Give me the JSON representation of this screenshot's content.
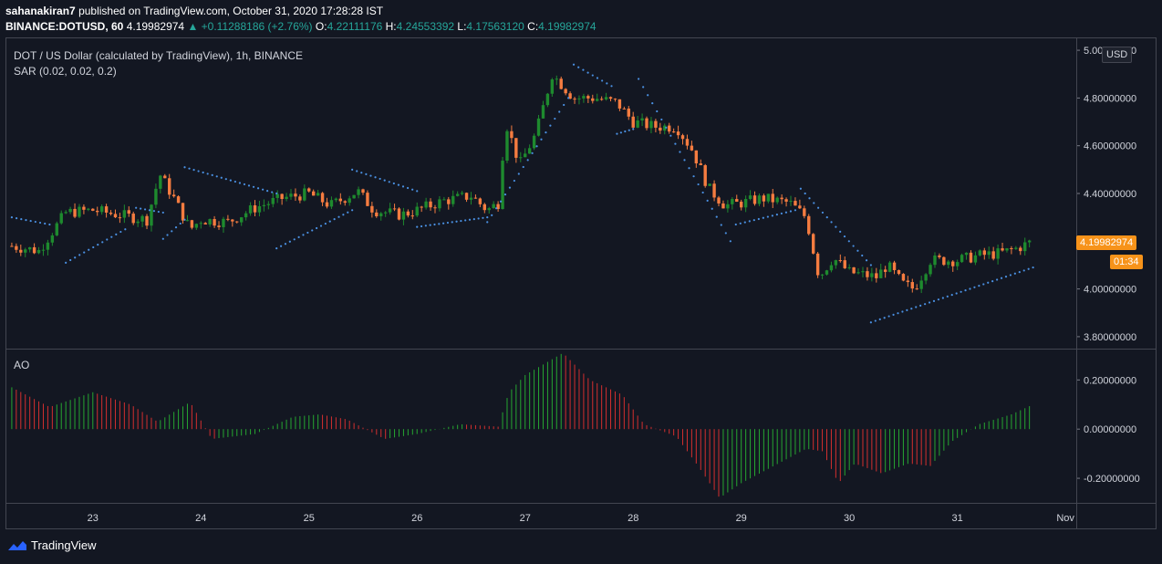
{
  "header": {
    "user": "sahanakiran7",
    "published": "published on TradingView.com, October 31, 2020 17:28:28 IST",
    "symbol_line": "BINANCE:DOTUSD, 60",
    "last": "4.19982974",
    "change": "▲ +0.11288186 (+2.76%)",
    "o_label": "O:",
    "o": "4.22111176",
    "h_label": "H:",
    "h": "4.24553392",
    "l_label": "L:",
    "l": "4.17563120",
    "c_label": "C:",
    "c": "4.19982974"
  },
  "main_legend": {
    "title": "DOT / US Dollar (calculated by TradingView), 1h, BINANCE",
    "indicator": "SAR (0.02, 0.02, 0.2)"
  },
  "ao_legend": "AO",
  "currency_button": "USD",
  "last_price_label": "4.19982974",
  "countdown_label": "01:34",
  "footer_brand": "TradingView",
  "colors": {
    "background": "#131722",
    "up": "#26a69a",
    "down": "#ef5350",
    "candle_up": "#1e8a2e",
    "candle_down": "#f57c40",
    "sar": "#4a90e2",
    "price_badge": "#f7931a"
  },
  "chart_data": [
    {
      "type": "candlestick",
      "title": "DOT / US Dollar (calculated by TradingView), 1h, BINANCE",
      "indicator": "SAR (0.02, 0.02, 0.2)",
      "ylim": [
        3.75,
        5.05
      ],
      "y_ticks": [
        "3.80000000",
        "4.00000000",
        "4.20000000",
        "4.40000000",
        "4.60000000",
        "4.80000000",
        "5.00000000"
      ],
      "x_ticks": [
        "23",
        "24",
        "25",
        "26",
        "27",
        "28",
        "29",
        "30",
        "31",
        "Nov"
      ],
      "close_path": [
        [
          22.25,
          4.18
        ],
        [
          22.5,
          4.16
        ],
        [
          22.75,
          4.32
        ],
        [
          23.0,
          4.33
        ],
        [
          23.25,
          4.31
        ],
        [
          23.5,
          4.29
        ],
        [
          23.62,
          4.48
        ],
        [
          23.75,
          4.38
        ],
        [
          23.9,
          4.25
        ],
        [
          24.0,
          4.29
        ],
        [
          24.25,
          4.28
        ],
        [
          24.5,
          4.34
        ],
        [
          24.75,
          4.38
        ],
        [
          25.0,
          4.4
        ],
        [
          25.2,
          4.35
        ],
        [
          25.45,
          4.41
        ],
        [
          25.6,
          4.33
        ],
        [
          25.85,
          4.31
        ],
        [
          26.0,
          4.33
        ],
        [
          26.25,
          4.37
        ],
        [
          26.5,
          4.39
        ],
        [
          26.65,
          4.33
        ],
        [
          26.75,
          4.36
        ],
        [
          26.82,
          4.7
        ],
        [
          26.95,
          4.52
        ],
        [
          27.1,
          4.65
        ],
        [
          27.25,
          4.9
        ],
        [
          27.45,
          4.8
        ],
        [
          27.65,
          4.8
        ],
        [
          27.85,
          4.78
        ],
        [
          28.0,
          4.7
        ],
        [
          28.2,
          4.68
        ],
        [
          28.4,
          4.68
        ],
        [
          28.55,
          4.58
        ],
        [
          28.7,
          4.42
        ],
        [
          28.85,
          4.35
        ],
        [
          29.0,
          4.36
        ],
        [
          29.2,
          4.38
        ],
        [
          29.45,
          4.36
        ],
        [
          29.6,
          4.3
        ],
        [
          29.72,
          4.05
        ],
        [
          29.85,
          4.13
        ],
        [
          30.0,
          4.07
        ],
        [
          30.25,
          4.05
        ],
        [
          30.35,
          4.1
        ],
        [
          30.5,
          4.02
        ],
        [
          30.6,
          4.0
        ],
        [
          30.75,
          4.12
        ],
        [
          31.0,
          4.12
        ],
        [
          31.2,
          4.14
        ],
        [
          31.4,
          4.15
        ],
        [
          31.55,
          4.17
        ],
        [
          31.7,
          4.2
        ]
      ],
      "sar_segments": [
        {
          "x": [
            22.25,
            22.6
          ],
          "y": [
            4.3,
            4.27
          ]
        },
        {
          "x": [
            22.75,
            23.3
          ],
          "y": [
            4.11,
            4.25
          ]
        },
        {
          "x": [
            23.4,
            23.65
          ],
          "y": [
            4.34,
            4.32
          ]
        },
        {
          "x": [
            23.65,
            23.85
          ],
          "y": [
            4.21,
            4.29
          ]
        },
        {
          "x": [
            23.85,
            24.7
          ],
          "y": [
            4.51,
            4.4
          ]
        },
        {
          "x": [
            24.7,
            25.4
          ],
          "y": [
            4.17,
            4.33
          ]
        },
        {
          "x": [
            25.4,
            26.0
          ],
          "y": [
            4.5,
            4.41
          ]
        },
        {
          "x": [
            26.0,
            26.65
          ],
          "y": [
            4.26,
            4.3
          ]
        },
        {
          "x": [
            26.65,
            27.4
          ],
          "y": [
            4.28,
            4.8
          ]
        },
        {
          "x": [
            27.45,
            27.8
          ],
          "y": [
            4.94,
            4.85
          ]
        },
        {
          "x": [
            27.85,
            28.0
          ],
          "y": [
            4.65,
            4.67
          ]
        },
        {
          "x": [
            28.05,
            28.9
          ],
          "y": [
            4.88,
            4.2
          ]
        },
        {
          "x": [
            28.95,
            29.5
          ],
          "y": [
            4.27,
            4.33
          ]
        },
        {
          "x": [
            29.55,
            30.2
          ],
          "y": [
            4.42,
            4.1
          ]
        },
        {
          "x": [
            30.2,
            31.7
          ],
          "y": [
            3.86,
            4.09
          ]
        }
      ]
    },
    {
      "type": "bar",
      "title": "AO",
      "ylim": [
        -0.3,
        0.32
      ],
      "y_ticks": [
        "-0.20000000",
        "0.00000000",
        "0.20000000"
      ],
      "profile": [
        [
          22.25,
          0.17
        ],
        [
          22.6,
          0.09
        ],
        [
          23.0,
          0.15
        ],
        [
          23.35,
          0.1
        ],
        [
          23.6,
          0.03
        ],
        [
          23.9,
          0.11
        ],
        [
          24.1,
          -0.04
        ],
        [
          24.5,
          -0.02
        ],
        [
          24.85,
          0.05
        ],
        [
          25.1,
          0.06
        ],
        [
          25.35,
          0.04
        ],
        [
          25.7,
          -0.04
        ],
        [
          26.0,
          -0.02
        ],
        [
          26.4,
          0.02
        ],
        [
          26.75,
          0.01
        ],
        [
          26.85,
          0.15
        ],
        [
          27.0,
          0.22
        ],
        [
          27.35,
          0.31
        ],
        [
          27.6,
          0.2
        ],
        [
          27.9,
          0.14
        ],
        [
          28.1,
          0.02
        ],
        [
          28.4,
          -0.03
        ],
        [
          28.6,
          -0.15
        ],
        [
          28.8,
          -0.28
        ],
        [
          29.0,
          -0.22
        ],
        [
          29.3,
          -0.15
        ],
        [
          29.6,
          -0.08
        ],
        [
          29.75,
          -0.09
        ],
        [
          29.9,
          -0.22
        ],
        [
          30.05,
          -0.14
        ],
        [
          30.3,
          -0.18
        ],
        [
          30.55,
          -0.14
        ],
        [
          30.75,
          -0.15
        ],
        [
          30.95,
          -0.05
        ],
        [
          31.2,
          0.02
        ],
        [
          31.5,
          0.06
        ],
        [
          31.7,
          0.1
        ]
      ]
    }
  ]
}
